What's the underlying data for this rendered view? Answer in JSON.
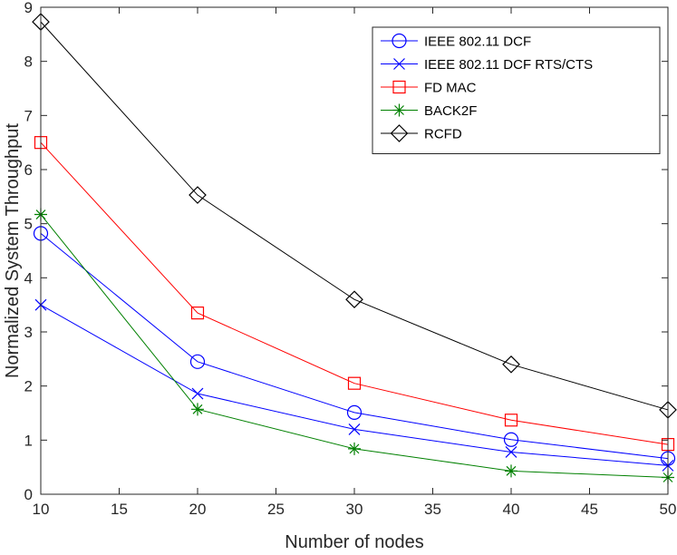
{
  "chart_data": {
    "type": "line",
    "title": "",
    "xlabel": "Number of nodes",
    "ylabel": "Normalized System Throughput",
    "xlim": [
      10,
      50
    ],
    "ylim": [
      0,
      9
    ],
    "xticks": [
      10,
      15,
      20,
      25,
      30,
      35,
      40,
      45,
      50
    ],
    "yticks": [
      0,
      1,
      2,
      3,
      4,
      5,
      6,
      7,
      8,
      9
    ],
    "grid": false,
    "legend_position": "top-right",
    "x": [
      10,
      20,
      30,
      40,
      50
    ],
    "series": [
      {
        "name": "IEEE 802.11 DCF",
        "color": "#0000ff",
        "marker": "circle",
        "values": [
          4.82,
          2.45,
          1.51,
          1.01,
          0.66
        ]
      },
      {
        "name": "IEEE 802.11 DCF RTS/CTS",
        "color": "#0000ff",
        "marker": "x",
        "values": [
          3.5,
          1.86,
          1.2,
          0.78,
          0.53
        ]
      },
      {
        "name": "FD MAC",
        "color": "#ff0000",
        "marker": "square",
        "values": [
          6.5,
          3.35,
          2.05,
          1.37,
          0.92
        ]
      },
      {
        "name": "BACK2F",
        "color": "#008000",
        "marker": "asterisk",
        "values": [
          5.17,
          1.57,
          0.84,
          0.43,
          0.31
        ]
      },
      {
        "name": "RCFD",
        "color": "#000000",
        "marker": "diamond",
        "values": [
          8.73,
          5.53,
          3.6,
          2.4,
          1.56
        ]
      }
    ]
  }
}
